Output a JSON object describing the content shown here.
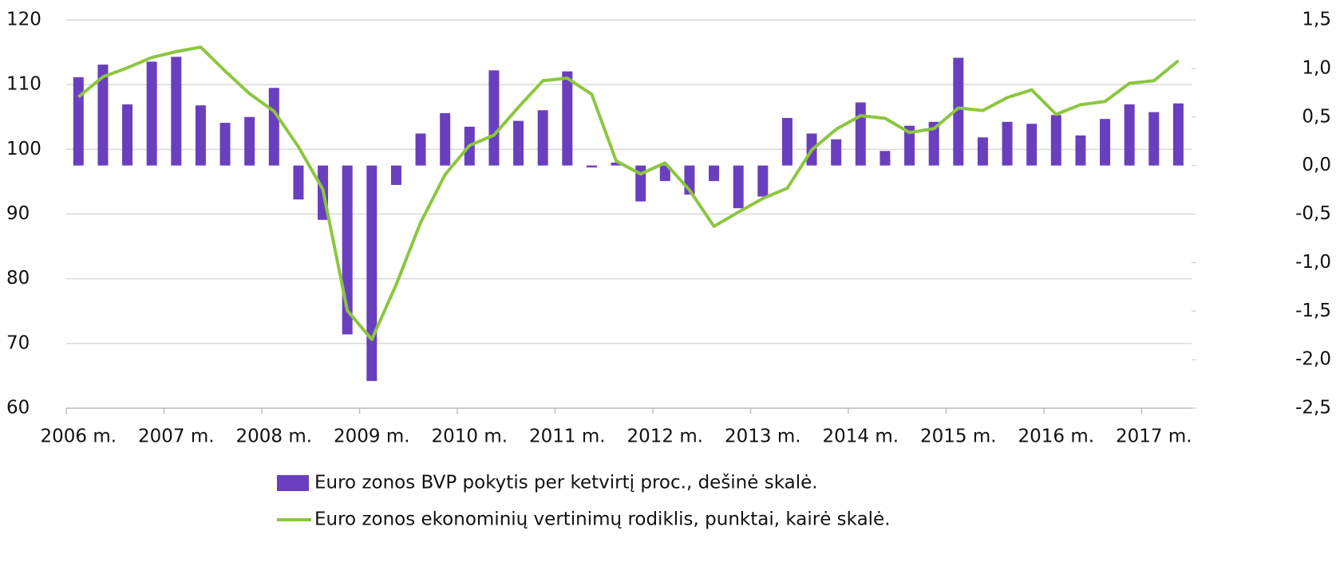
{
  "chart_data": {
    "type": "bar_line",
    "categories": [
      "2006 m.",
      null,
      null,
      null,
      "2007 m.",
      null,
      null,
      null,
      "2008 m.",
      null,
      null,
      null,
      "2009 m.",
      null,
      null,
      null,
      "2010 m.",
      null,
      null,
      null,
      "2011 m.",
      null,
      null,
      null,
      "2012 m.",
      null,
      null,
      null,
      "2013 m.",
      null,
      null,
      null,
      "2014 m.",
      null,
      null,
      null,
      "2015 m.",
      null,
      null,
      null,
      "2016 m.",
      null,
      null,
      null,
      "2017 m.",
      null
    ],
    "series": [
      {
        "name": "Euro zonos BVP pokytis per ketvirtį proc., dešinė skalė.",
        "type": "bar",
        "axis": "y2",
        "color": "#6a3fbf",
        "values": [
          0.91,
          1.04,
          0.63,
          1.07,
          1.12,
          0.62,
          0.44,
          0.5,
          0.8,
          -0.35,
          -0.56,
          -1.74,
          -2.22,
          -0.2,
          0.33,
          0.54,
          0.4,
          0.98,
          0.46,
          0.57,
          0.97,
          -0.02,
          0.03,
          -0.37,
          -0.16,
          -0.3,
          -0.16,
          -0.44,
          -0.32,
          0.49,
          0.33,
          0.27,
          0.65,
          0.15,
          0.41,
          0.45,
          1.11,
          0.29,
          0.45,
          0.43,
          0.52,
          0.31,
          0.48,
          0.63,
          0.55,
          0.64
        ]
      },
      {
        "name": "Euro zonos ekonominių vertinimų rodiklis, punktai, kairė skalė.",
        "type": "line",
        "axis": "y",
        "color": "#8cc63f",
        "values": [
          108.1,
          111.2,
          112.6,
          114.2,
          115.1,
          115.8,
          112.1,
          108.6,
          105.9,
          100.4,
          93.8,
          75.1,
          70.6,
          79.1,
          88.7,
          96.1,
          100.6,
          102.2,
          106.5,
          110.6,
          111.0,
          108.5,
          98.2,
          96.2,
          97.9,
          93.7,
          88.1,
          90.3,
          92.4,
          94.0,
          99.9,
          103.1,
          105.2,
          104.8,
          102.6,
          103.2,
          106.4,
          106.0,
          108.0,
          109.2,
          105.4,
          106.9,
          107.4,
          110.2,
          110.6,
          113.7
        ]
      }
    ],
    "ylim": [
      60,
      120
    ],
    "yticks": [
      60,
      70,
      80,
      90,
      100,
      110,
      120
    ],
    "y2lim": [
      -2.5,
      1.5
    ],
    "y2ticks": [
      {
        "value": -2.5,
        "label": "-2,5"
      },
      {
        "value": -2.0,
        "label": "-2,0"
      },
      {
        "value": -1.5,
        "label": "-1,5"
      },
      {
        "value": -1.0,
        "label": "-1,0"
      },
      {
        "value": -0.5,
        "label": "-0,5"
      },
      {
        "value": 0.0,
        "label": "0,0"
      },
      {
        "value": 0.5,
        "label": "0,5"
      },
      {
        "value": 1.0,
        "label": "1,0"
      },
      {
        "value": 1.5,
        "label": "1,5"
      }
    ],
    "grid": true,
    "legend": "bottom"
  }
}
